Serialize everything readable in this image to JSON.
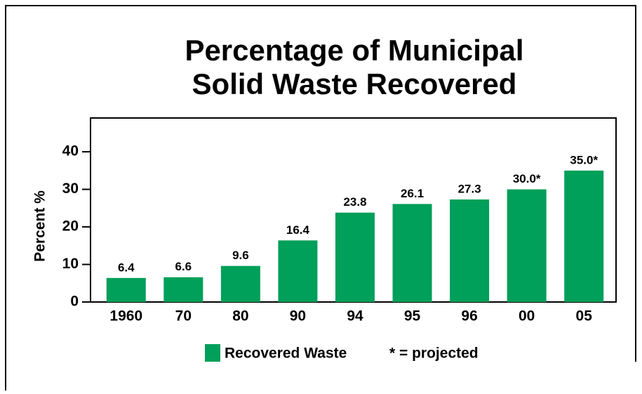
{
  "chart_data": {
    "type": "bar",
    "title": [
      "Percentage of Municipal",
      "Solid Waste Recovered"
    ],
    "y_label": "Percent %",
    "categories": [
      "1960",
      "70",
      "80",
      "90",
      "94",
      "95",
      "96",
      "00",
      "05"
    ],
    "series": [
      {
        "name": "Recovered Waste",
        "color": "#009f5a",
        "values": [
          6.4,
          6.6,
          9.6,
          16.4,
          23.8,
          26.1,
          27.3,
          30.0,
          35.0
        ],
        "value_labels": [
          "6.4",
          "6.6",
          "9.6",
          "16.4",
          "23.8",
          "26.1",
          "27.3",
          "30.0*",
          "35.0*"
        ]
      }
    ],
    "note": "* = projected",
    "ylim": [
      0,
      49
    ],
    "yticks": [
      0,
      10,
      20,
      30,
      40
    ],
    "grid": false,
    "legend": "bottom"
  }
}
